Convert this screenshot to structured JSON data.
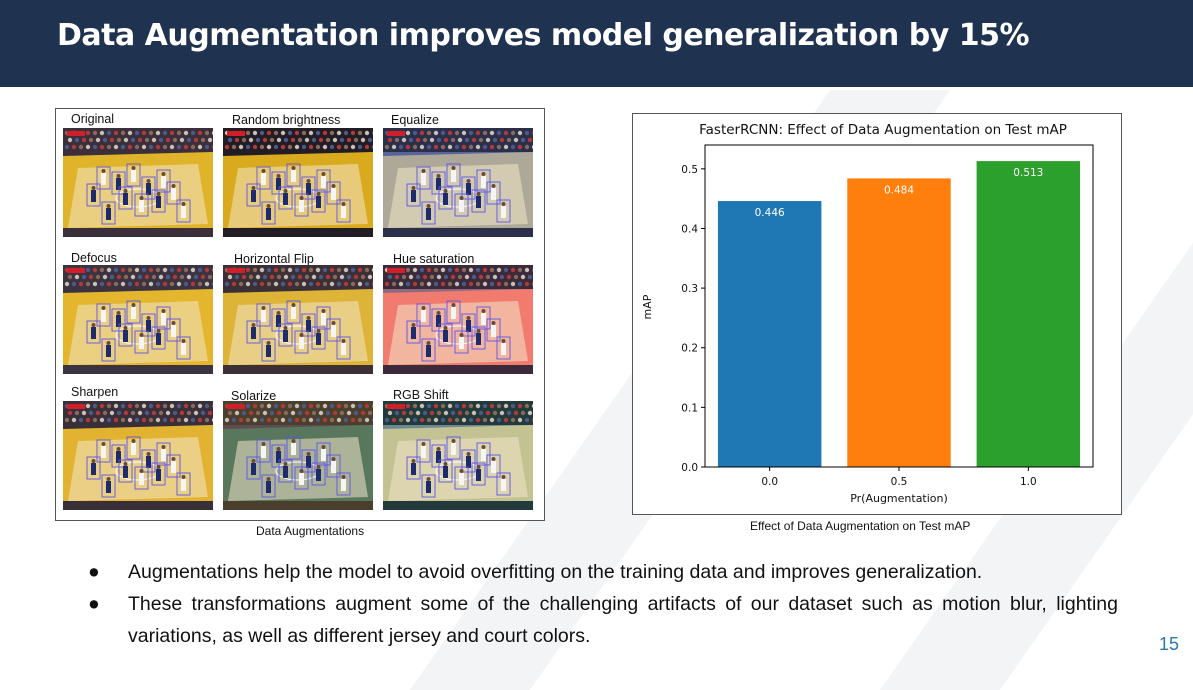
{
  "slide": {
    "title": "Data Augmentation improves model generalization by 15%",
    "page_number": "15"
  },
  "augmentations": {
    "labels": [
      "Original",
      "Random brightness",
      "Equalize",
      "Defocus",
      "Horizontal Flip",
      "Hue saturation",
      "Sharpen",
      "Solarize",
      "RGB Shift"
    ],
    "caption": "Data Augmentations"
  },
  "chart_caption": "Effect of Data Augmentation on Test mAP",
  "chart_data": {
    "type": "bar",
    "title": "FasterRCNN: Effect of Data Augmentation on Test mAP",
    "xlabel": "Pr(Augmentation)",
    "ylabel": "mAP",
    "categories": [
      "0.0",
      "0.5",
      "1.0"
    ],
    "values": [
      0.446,
      0.484,
      0.513
    ],
    "value_labels": [
      "0.446",
      "0.484",
      "0.513"
    ],
    "bar_colors": [
      "#1f77b4",
      "#ff7f0e",
      "#2ca02c"
    ],
    "ylim": [
      0,
      0.54
    ],
    "yticks": [
      "0.0",
      "0.1",
      "0.2",
      "0.3",
      "0.4",
      "0.5"
    ],
    "grid": false,
    "legend": "none"
  },
  "bullets": [
    "Augmentations help the model to avoid overfitting on the training data and improves generalization.",
    "These transformations augment some of the challenging artifacts of our dataset such as motion blur, lighting variations, as well as different jersey and court colors."
  ],
  "bullet_symbol": "●"
}
